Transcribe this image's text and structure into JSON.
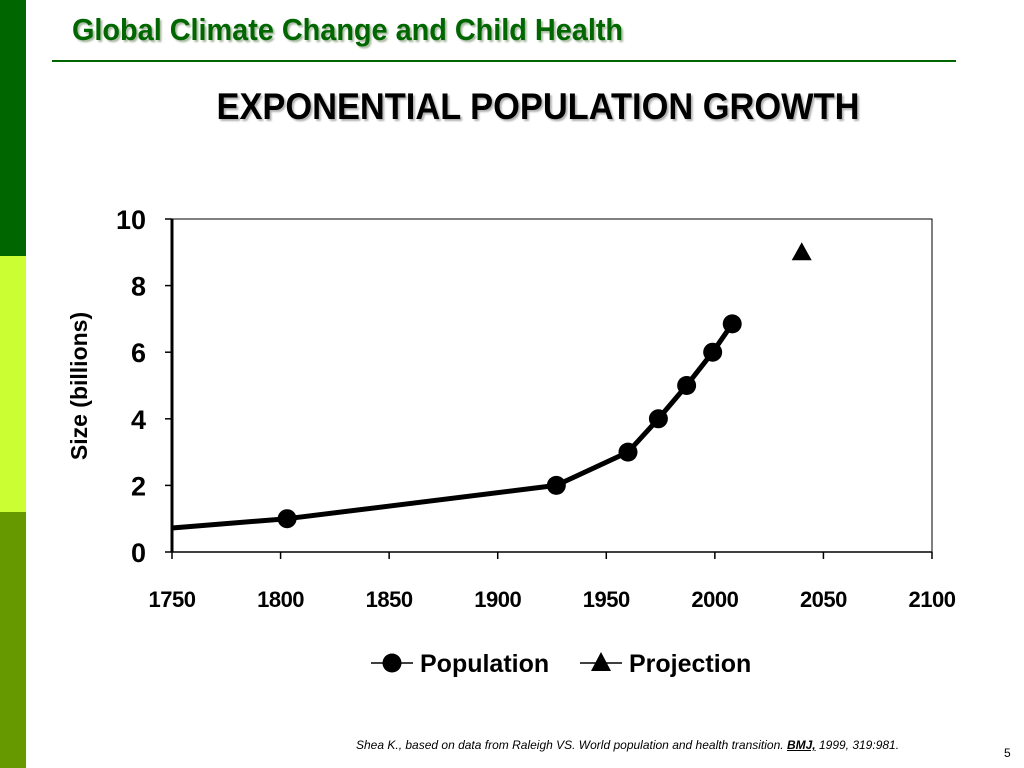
{
  "header": {
    "title": "Global Climate Change and Child Health"
  },
  "slide": {
    "title": "EXPONENTIAL POPULATION GROWTH",
    "page_number": "5"
  },
  "citation": {
    "prefix": "Shea K., based on data from Raleigh VS. World population and health transition.",
    "journal": "BMJ,",
    "suffix": "1999, 319:981."
  },
  "colors": {
    "header_green": "#006600",
    "bar_dark": "#006600",
    "bar_lime": "#ccff33",
    "bar_olive": "#669900",
    "series": "#000000"
  },
  "chart_data": {
    "type": "line",
    "title": "",
    "xlabel": "",
    "ylabel": "Size (billions)",
    "xlim": [
      1750,
      2100
    ],
    "ylim": [
      0,
      10
    ],
    "xticks": [
      1750,
      1800,
      1850,
      1900,
      1950,
      2000,
      2050,
      2100
    ],
    "yticks": [
      0,
      2,
      4,
      6,
      8,
      10
    ],
    "grid": false,
    "legend": "bottom",
    "series": [
      {
        "name": "Population",
        "marker": "circle",
        "line": true,
        "start": {
          "x": 1750,
          "y": 0.72
        },
        "points": [
          {
            "x": 1803,
            "y": 1.0
          },
          {
            "x": 1927,
            "y": 2.0
          },
          {
            "x": 1960,
            "y": 3.0
          },
          {
            "x": 1974,
            "y": 4.0
          },
          {
            "x": 1987,
            "y": 5.0
          },
          {
            "x": 1999,
            "y": 6.0
          },
          {
            "x": 2008,
            "y": 6.85
          }
        ]
      },
      {
        "name": "Projection",
        "marker": "triangle",
        "line": false,
        "points": [
          {
            "x": 2040,
            "y": 9.0
          }
        ]
      }
    ]
  }
}
